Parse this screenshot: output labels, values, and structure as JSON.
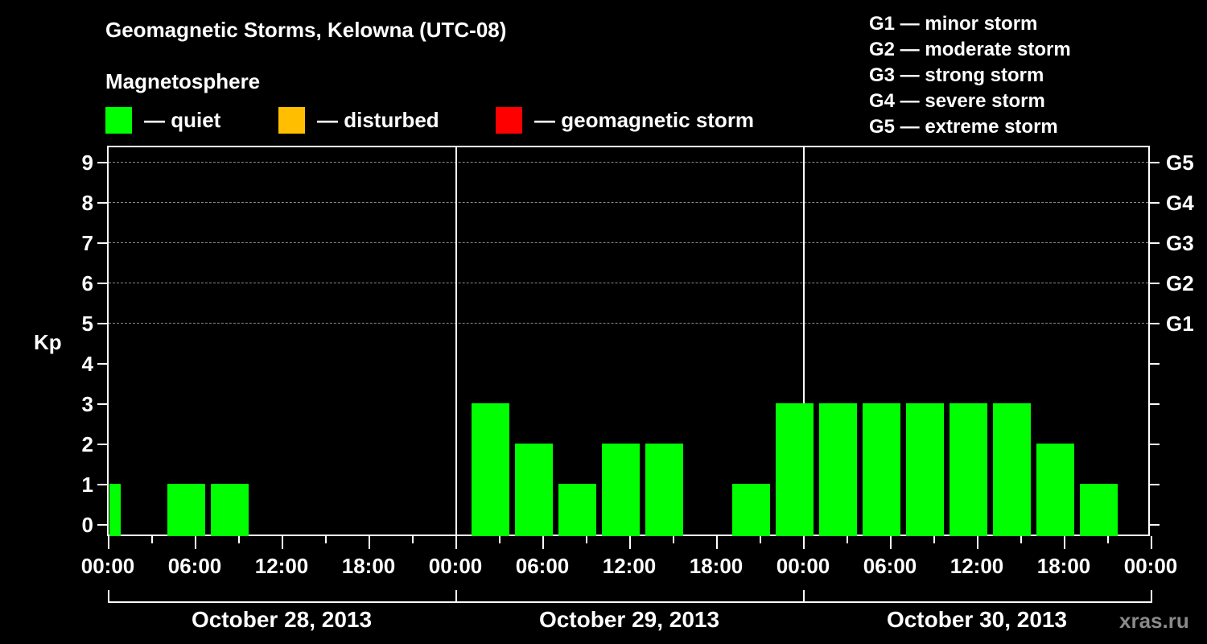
{
  "header": {
    "title": "Geomagnetic Storms, Kelowna (UTC-08)",
    "subtitle": "Magnetosphere"
  },
  "legend": [
    {
      "label": "— quiet",
      "color": "#00ff00"
    },
    {
      "label": "— disturbed",
      "color": "#ffbf00"
    },
    {
      "label": "— geomagnetic storm",
      "color": "#ff0000"
    }
  ],
  "g_scale": [
    "G1 — minor storm",
    "G2 — moderate storm",
    "G3 — strong storm",
    "G4 — severe storm",
    "G5 — extreme storm"
  ],
  "axes": {
    "ylabel": "Kp",
    "yticks": [
      "0",
      "1",
      "2",
      "3",
      "4",
      "5",
      "6",
      "7",
      "8",
      "9"
    ],
    "right_labels": [
      "G1",
      "G2",
      "G3",
      "G4",
      "G5"
    ],
    "xticks": [
      "00:00",
      "06:00",
      "12:00",
      "18:00",
      "00:00",
      "06:00",
      "12:00",
      "18:00",
      "00:00",
      "06:00",
      "12:00",
      "18:00",
      "00:00"
    ],
    "dates": [
      "October 28, 2013",
      "October 29, 2013",
      "October 30, 2013"
    ]
  },
  "watermark": "xras.ru",
  "chart_data": {
    "type": "bar",
    "title": "Geomagnetic Storms, Kelowna (UTC-08)",
    "subtitle": "Magnetosphere",
    "xlabel": "",
    "ylabel": "Kp",
    "ylim": [
      0,
      9
    ],
    "interval_hours": 3,
    "x_range": [
      "October 28, 2013 00:00",
      "October 31, 2013 00:00"
    ],
    "grid": "dashed horizontal at Kp 5-9",
    "legend_position": "top",
    "legend": [
      {
        "label": "quiet",
        "color": "#00ff00"
      },
      {
        "label": "disturbed",
        "color": "#ffbf00"
      },
      {
        "label": "geomagnetic storm",
        "color": "#ff0000"
      }
    ],
    "right_axis": {
      "5": "G1",
      "6": "G2",
      "7": "G3",
      "8": "G4",
      "9": "G5"
    },
    "bars": [
      {
        "date": "October 28, 2013",
        "start": "00:00",
        "kp": 1,
        "status": "quiet",
        "partial": true
      },
      {
        "date": "October 28, 2013",
        "start": "04:00",
        "kp": 1,
        "status": "quiet"
      },
      {
        "date": "October 28, 2013",
        "start": "07:00",
        "kp": 1,
        "status": "quiet"
      },
      {
        "date": "October 29, 2013",
        "start": "01:00",
        "kp": 3,
        "status": "quiet"
      },
      {
        "date": "October 29, 2013",
        "start": "04:00",
        "kp": 2,
        "status": "quiet"
      },
      {
        "date": "October 29, 2013",
        "start": "07:00",
        "kp": 1,
        "status": "quiet"
      },
      {
        "date": "October 29, 2013",
        "start": "10:00",
        "kp": 2,
        "status": "quiet"
      },
      {
        "date": "October 29, 2013",
        "start": "13:00",
        "kp": 2,
        "status": "quiet"
      },
      {
        "date": "October 29, 2013",
        "start": "19:00",
        "kp": 1,
        "status": "quiet"
      },
      {
        "date": "October 29, 2013",
        "start": "22:00",
        "kp": 3,
        "status": "quiet"
      },
      {
        "date": "October 30, 2013",
        "start": "01:00",
        "kp": 3,
        "status": "quiet"
      },
      {
        "date": "October 30, 2013",
        "start": "04:00",
        "kp": 3,
        "status": "quiet"
      },
      {
        "date": "October 30, 2013",
        "start": "07:00",
        "kp": 3,
        "status": "quiet"
      },
      {
        "date": "October 30, 2013",
        "start": "10:00",
        "kp": 3,
        "status": "quiet"
      },
      {
        "date": "October 30, 2013",
        "start": "13:00",
        "kp": 3,
        "status": "quiet"
      },
      {
        "date": "October 30, 2013",
        "start": "16:00",
        "kp": 2,
        "status": "quiet"
      },
      {
        "date": "October 30, 2013",
        "start": "19:00",
        "kp": 1,
        "status": "quiet"
      }
    ]
  }
}
